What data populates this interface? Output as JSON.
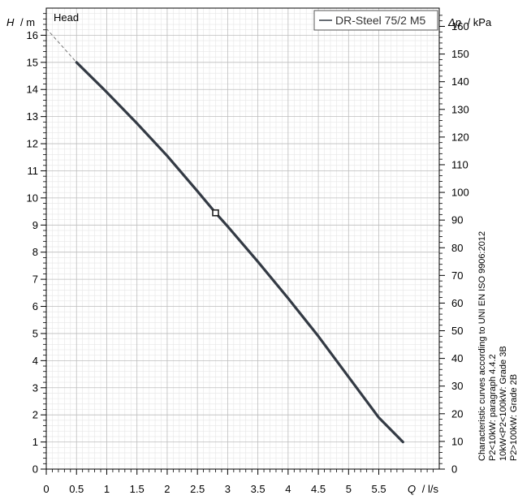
{
  "chart_data": {
    "type": "line",
    "title": "Head",
    "legend": {
      "entries": [
        "DR-Steel 75/2 M5"
      ],
      "placement": "top-right"
    },
    "xlabel": {
      "symbol": "Q",
      "unit": "/ l/s"
    },
    "ylabel_left": {
      "symbol": "H",
      "unit": "/ m"
    },
    "ylabel_right": {
      "symbol": "Δp",
      "unit": "/ kPa"
    },
    "x_ticks": [
      "0",
      "0.5",
      "1",
      "1.5",
      "2",
      "2.5",
      "3",
      "3.5",
      "4",
      "4.5",
      "5",
      "5.5"
    ],
    "y_left_ticks": [
      "0",
      "1",
      "2",
      "3",
      "4",
      "5",
      "6",
      "7",
      "8",
      "9",
      "10",
      "11",
      "12",
      "13",
      "14",
      "15",
      "16"
    ],
    "y_right_ticks": [
      "0",
      "10",
      "20",
      "30",
      "40",
      "50",
      "60",
      "70",
      "80",
      "90",
      "100",
      "110",
      "120",
      "130",
      "140",
      "150",
      "160"
    ],
    "xlim": [
      0,
      6.5
    ],
    "ylim_left": [
      0,
      17
    ],
    "ylim_right": [
      0,
      166.6
    ],
    "grid": true,
    "series": [
      {
        "name": "DR-Steel 75/2 M5",
        "color": "#333a44",
        "x": [
          0.5,
          1.0,
          1.5,
          2.0,
          2.5,
          2.8,
          3.0,
          3.5,
          4.0,
          4.5,
          5.0,
          5.5,
          5.9
        ],
        "values": [
          15.0,
          13.9,
          12.75,
          11.55,
          10.25,
          9.45,
          8.95,
          7.65,
          6.3,
          4.9,
          3.4,
          1.9,
          1.0
        ]
      }
    ],
    "extrapolation": {
      "style": "dashed",
      "x": [
        0,
        0.5
      ],
      "values": [
        16.25,
        15.0
      ]
    },
    "operating_point": {
      "x": 2.8,
      "y": 9.45
    },
    "notes": [
      "Characteristic curves according to UNI EN ISO 9906:2012",
      "P2<10kW:  paragraph 4.4.2",
      "10kW<P2<100kW: Grade 3B",
      "P2>100kW: Grade 2B"
    ]
  }
}
